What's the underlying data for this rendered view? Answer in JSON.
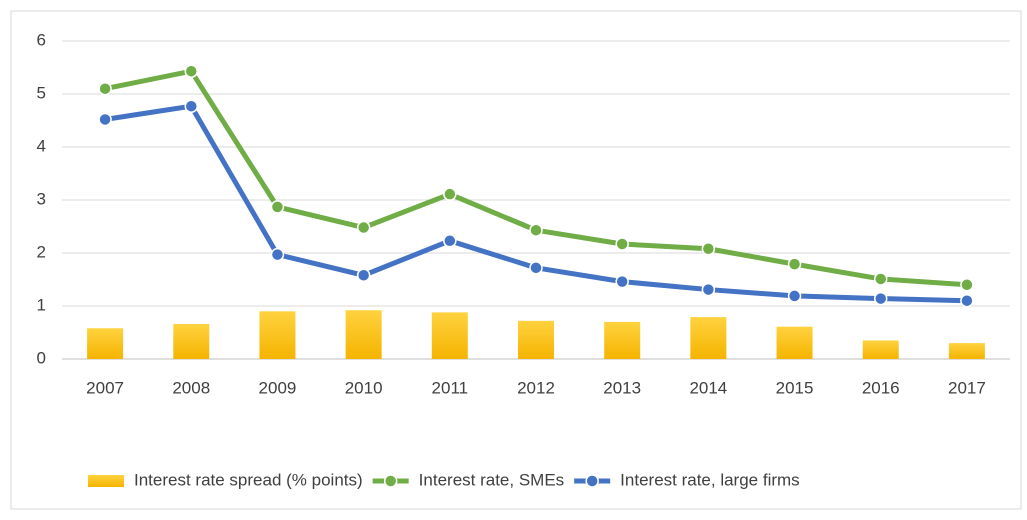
{
  "chart_data": {
    "type": "combo",
    "categories": [
      "2007",
      "2008",
      "2009",
      "2010",
      "2011",
      "2012",
      "2013",
      "2014",
      "2015",
      "2016",
      "2017"
    ],
    "series": [
      {
        "name": "Interest rate spread (% points)",
        "type": "bar",
        "color": "#ffc000",
        "values": [
          0.58,
          0.66,
          0.9,
          0.92,
          0.88,
          0.72,
          0.7,
          0.79,
          0.61,
          0.35,
          0.3
        ]
      },
      {
        "name": "Interest rate, SMEs",
        "type": "line",
        "color": "#70ad47",
        "values": [
          5.1,
          5.43,
          2.87,
          2.48,
          3.11,
          2.43,
          2.17,
          2.08,
          1.79,
          1.51,
          1.4
        ]
      },
      {
        "name": "Interest rate, large firms",
        "type": "line",
        "color": "#4472c4",
        "values": [
          4.52,
          4.77,
          1.97,
          1.58,
          2.23,
          1.72,
          1.46,
          1.31,
          1.19,
          1.14,
          1.1
        ]
      }
    ],
    "ylim": [
      0,
      6
    ],
    "yticks": [
      0,
      1,
      2,
      3,
      4,
      5,
      6
    ],
    "grid": true,
    "legend": "bottom"
  }
}
